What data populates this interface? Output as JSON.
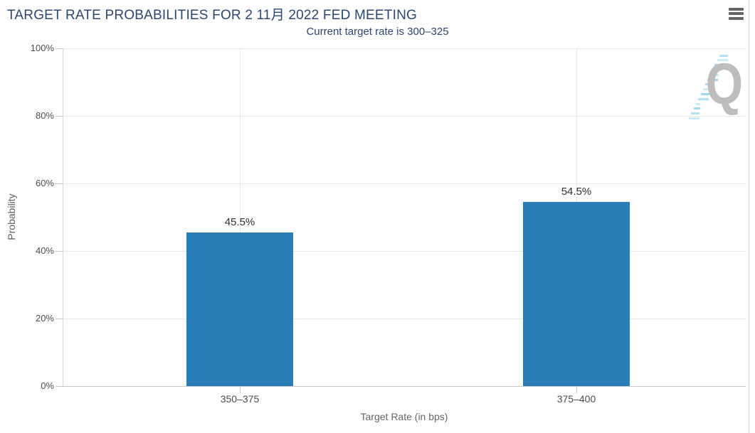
{
  "watermark": {
    "letter": "Q",
    "icon": "quandl-logo"
  },
  "menu": {
    "icon": "hamburger-menu-icon"
  },
  "chart_data": {
    "type": "bar",
    "title": "TARGET RATE PROBABILITIES FOR 2 11月 2022 FED MEETING",
    "subtitle": "Current target rate is 300–325",
    "categories": [
      "350–375",
      "375–400"
    ],
    "series": [
      {
        "name": "Probability",
        "values": [
          45.5,
          54.5
        ]
      }
    ],
    "values": [
      45.5,
      54.5
    ],
    "data_labels": [
      "45.5%",
      "54.5%"
    ],
    "xlabel": "Target Rate (in bps)",
    "ylabel": "Probability",
    "ylim": [
      0,
      100
    ],
    "yticks": [
      0,
      20,
      40,
      60,
      80,
      100
    ],
    "ytick_labels": [
      "0%",
      "20%",
      "40%",
      "60%",
      "80%",
      "100%"
    ],
    "grid": true,
    "legend_position": "none",
    "bar_color": "#2b7db7",
    "title_color": "#2c4770",
    "gridline_color": "#e6e6e6"
  }
}
